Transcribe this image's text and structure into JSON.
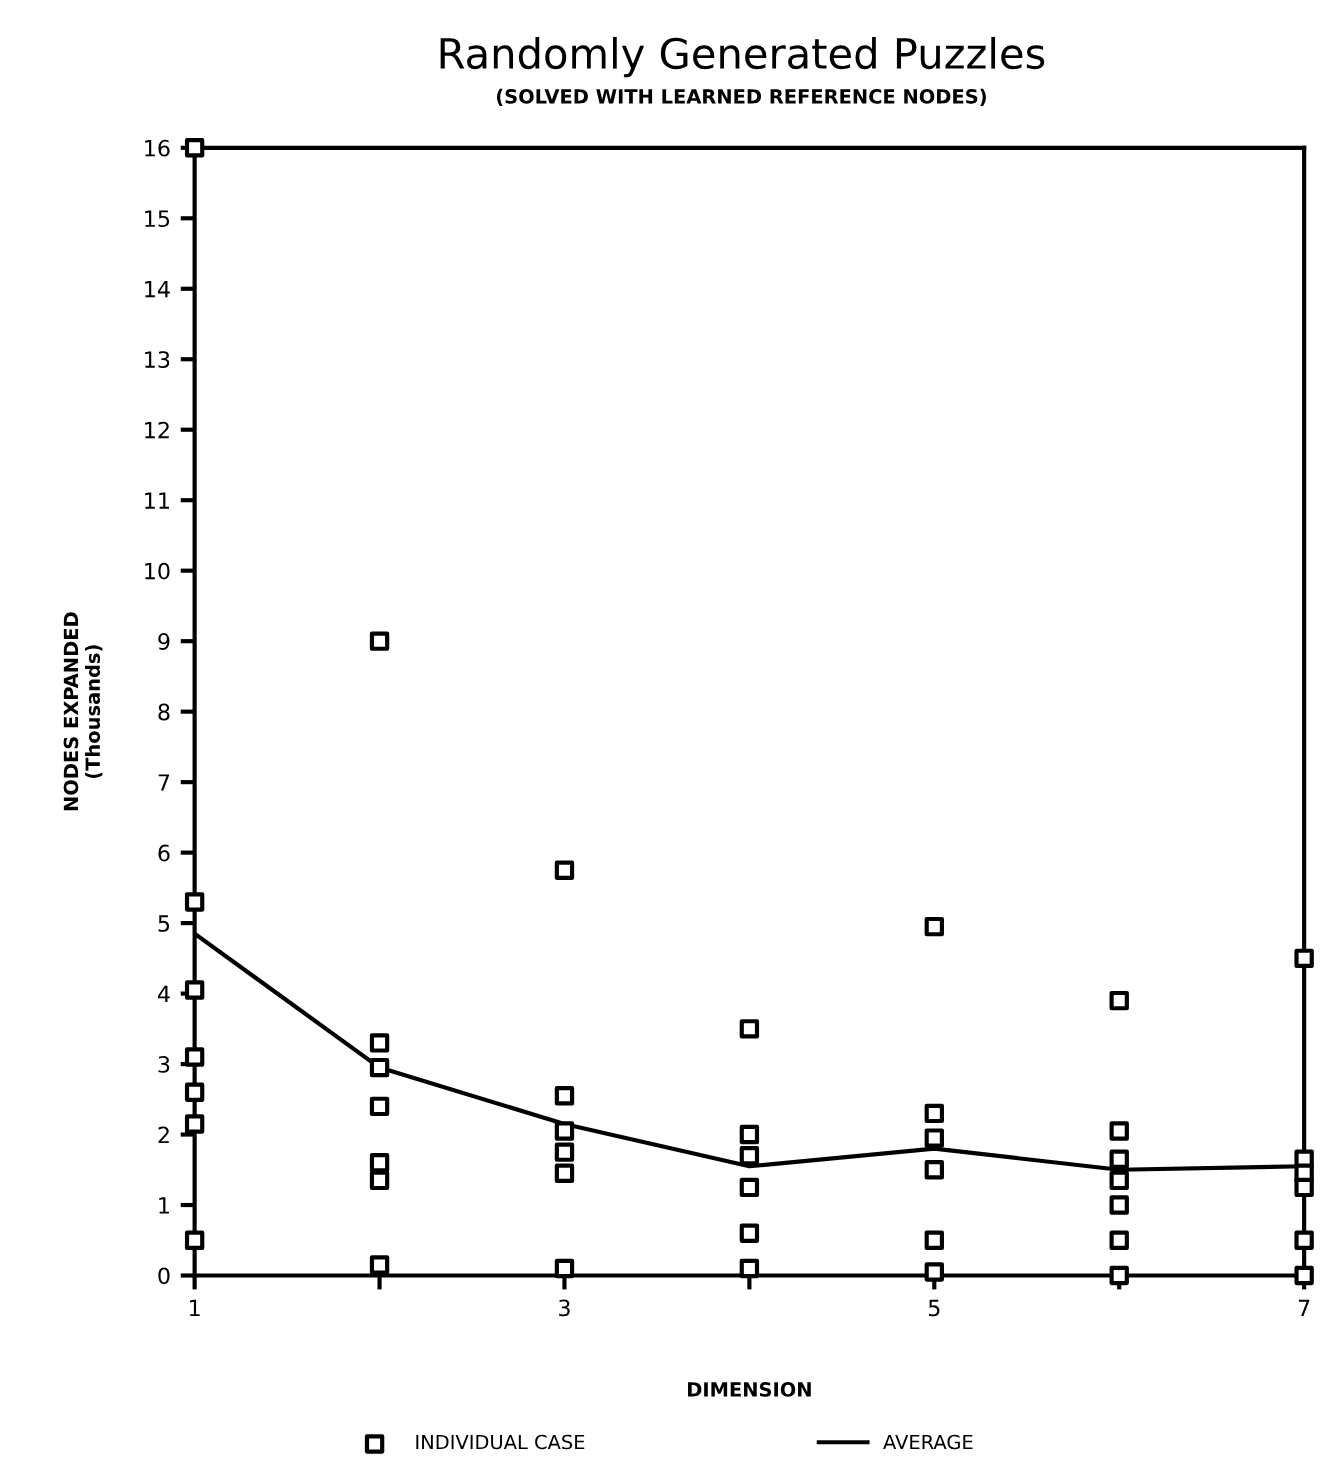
{
  "chart_data": {
    "type": "scatter",
    "title": "Randomly Generated Puzzles",
    "subtitle": "(SOLVED WITH LEARNED REFERENCE NODES)",
    "xlabel": "DIMENSION",
    "ylabel": "NODES EXPANDED\n(Thousands)",
    "xlim": [
      1,
      7
    ],
    "xticks": [
      1,
      {
        "value": 2,
        "label": null
      },
      3,
      {
        "value": 4,
        "label": null
      },
      5,
      {
        "value": 6,
        "label": null
      },
      7
    ],
    "ylim": [
      0,
      16
    ],
    "yticks": [
      0,
      1,
      2,
      3,
      4,
      5,
      6,
      7,
      8,
      9,
      10,
      11,
      12,
      13,
      14,
      15,
      16
    ],
    "grid": false,
    "legend": "bottom",
    "series": [
      {
        "name": "INDIVIDUAL CASE",
        "marker": "square",
        "color": "#000000",
        "x": [
          1,
          1,
          1,
          1,
          1,
          1,
          1,
          2,
          2,
          2,
          2,
          2,
          2,
          2,
          3,
          3,
          3,
          3,
          3,
          3,
          4,
          4,
          4,
          4,
          4,
          4,
          5,
          5,
          5,
          5,
          5,
          5,
          6,
          6,
          6,
          6,
          6,
          6,
          6,
          7,
          7,
          7,
          7,
          7,
          7
        ],
        "values": [
          16,
          5.3,
          4.05,
          3.1,
          2.6,
          2.15,
          0.5,
          9,
          3.3,
          2.95,
          2.4,
          1.6,
          1.35,
          0.15,
          5.75,
          2.55,
          2.05,
          1.75,
          1.45,
          0.1,
          3.5,
          2,
          1.7,
          1.25,
          0.6,
          0.1,
          4.95,
          2.3,
          1.95,
          1.5,
          0.5,
          0.05,
          3.9,
          2.05,
          1.65,
          1.35,
          1,
          0.5,
          0,
          4.5,
          1.65,
          1.45,
          1.25,
          0.5,
          0
        ]
      },
      {
        "name": "AVERAGE",
        "type": "line",
        "marker": "none",
        "line_style": "solid",
        "color": "#000000",
        "x": [
          1,
          2,
          3,
          4,
          5,
          6,
          7
        ],
        "values": [
          4.85,
          2.95,
          2.15,
          1.55,
          1.8,
          1.5,
          1.55
        ]
      }
    ]
  }
}
